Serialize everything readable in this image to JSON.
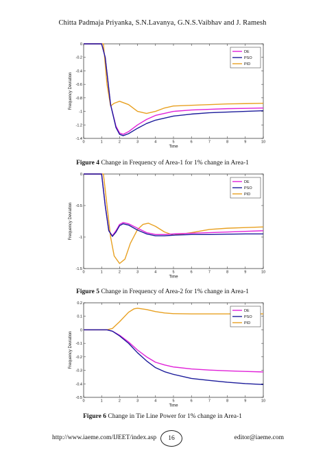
{
  "header": {
    "authors": "Chitta Padmaja Priyanka, S.N.Lavanya, G.N.S.Vaibhav and J. Ramesh"
  },
  "figures": [
    {
      "label": "Figure 4",
      "caption": " Change in Frequency of Area-1 for 1% change in Area-1"
    },
    {
      "label": "Figure 5",
      "caption": " Change in Frequency of Area-2 for 1% change in Area-1"
    },
    {
      "label": "Figure 6",
      "caption": " Change in Tie Line Power for 1% change in Area-1"
    }
  ],
  "footer": {
    "url": "http://www.iaeme.com/IJEET/index.asp",
    "page": "16",
    "email": "editor@iaeme.com"
  },
  "colors": {
    "DE": "#e020d8",
    "PSO": "#1a1a9a",
    "PID": "#e8a020"
  },
  "chart_data": [
    {
      "type": "line",
      "xlabel": "Time",
      "ylabel": "Frequency Deviation",
      "xlim": [
        0,
        10
      ],
      "ylim": [
        -1.4,
        0
      ],
      "xticks": [
        0,
        1,
        2,
        3,
        4,
        5,
        6,
        7,
        8,
        9,
        10
      ],
      "yticks": [
        0,
        -0.2,
        -0.4,
        -0.6,
        -0.8,
        -1,
        -1.2,
        -1.4
      ],
      "ytick_labels": [
        "0",
        "-0.2",
        "-0.4",
        "-0.6",
        "-0.8",
        "-1",
        "-1.2",
        "-1.4"
      ],
      "legend_position": "top-right",
      "series": [
        {
          "name": "DE",
          "x": [
            0,
            1,
            1.2,
            1.5,
            1.8,
            2.0,
            2.2,
            2.5,
            3.0,
            3.5,
            4,
            5,
            6,
            7,
            8,
            9,
            10
          ],
          "y": [
            0,
            0,
            -0.2,
            -0.9,
            -1.22,
            -1.32,
            -1.34,
            -1.3,
            -1.2,
            -1.12,
            -1.06,
            -1.0,
            -0.98,
            -0.97,
            -0.96,
            -0.955,
            -0.95
          ]
        },
        {
          "name": "PSO",
          "x": [
            0,
            1,
            1.2,
            1.5,
            1.8,
            2.0,
            2.2,
            2.5,
            3.0,
            3.5,
            4,
            5,
            6,
            7,
            8,
            9,
            10
          ],
          "y": [
            0,
            0,
            -0.2,
            -0.9,
            -1.24,
            -1.34,
            -1.36,
            -1.33,
            -1.25,
            -1.18,
            -1.13,
            -1.07,
            -1.04,
            -1.02,
            -1.01,
            -1.0,
            -0.99
          ]
        },
        {
          "name": "PID",
          "x": [
            0,
            1,
            1.1,
            1.3,
            1.5,
            1.7,
            2.0,
            2.5,
            3.0,
            3.5,
            4,
            4.5,
            5,
            6,
            7,
            8,
            9,
            10
          ],
          "y": [
            0,
            0,
            0,
            -0.6,
            -0.92,
            -0.88,
            -0.85,
            -0.9,
            -1.0,
            -1.03,
            -1.0,
            -0.95,
            -0.92,
            -0.91,
            -0.9,
            -0.89,
            -0.885,
            -0.88
          ]
        }
      ]
    },
    {
      "type": "line",
      "xlabel": "Time",
      "ylabel": "Frequency Deviation",
      "xlim": [
        0,
        10
      ],
      "ylim": [
        -1.5,
        0
      ],
      "xticks": [
        0,
        1,
        2,
        3,
        4,
        5,
        6,
        7,
        8,
        9,
        10
      ],
      "yticks": [
        0,
        -0.5,
        -1,
        -1.5
      ],
      "ytick_labels": [
        "0",
        "-0.5",
        "-1",
        "-1.5"
      ],
      "legend_position": "top-right",
      "series": [
        {
          "name": "DE",
          "x": [
            0,
            1,
            1.2,
            1.4,
            1.6,
            1.8,
            2.0,
            2.2,
            2.5,
            3.0,
            3.5,
            4,
            4.5,
            5,
            6,
            7,
            8,
            9,
            10
          ],
          "y": [
            0,
            0,
            -0.5,
            -0.9,
            -0.98,
            -0.9,
            -0.8,
            -0.77,
            -0.79,
            -0.86,
            -0.93,
            -0.96,
            -0.96,
            -0.95,
            -0.94,
            -0.93,
            -0.92,
            -0.91,
            -0.9
          ]
        },
        {
          "name": "PSO",
          "x": [
            0,
            1,
            1.2,
            1.4,
            1.6,
            1.8,
            2.0,
            2.2,
            2.5,
            3.0,
            3.5,
            4,
            4.5,
            5,
            6,
            7,
            8,
            9,
            10
          ],
          "y": [
            0,
            0,
            -0.5,
            -0.9,
            -0.99,
            -0.92,
            -0.82,
            -0.79,
            -0.81,
            -0.89,
            -0.95,
            -0.98,
            -0.98,
            -0.97,
            -0.96,
            -0.96,
            -0.955,
            -0.95,
            -0.95
          ]
        },
        {
          "name": "PID",
          "x": [
            0,
            1,
            1.1,
            1.3,
            1.5,
            1.7,
            2.0,
            2.3,
            2.6,
            3.0,
            3.3,
            3.6,
            4,
            4.5,
            5,
            6,
            7,
            8,
            9,
            10
          ],
          "y": [
            0,
            0,
            0,
            -0.5,
            -1.0,
            -1.3,
            -1.42,
            -1.35,
            -1.1,
            -0.88,
            -0.8,
            -0.78,
            -0.83,
            -0.92,
            -0.97,
            -0.93,
            -0.88,
            -0.86,
            -0.85,
            -0.84
          ]
        }
      ]
    },
    {
      "type": "line",
      "xlabel": "Time",
      "ylabel": "Frequency Deviation",
      "xlim": [
        0,
        10
      ],
      "ylim": [
        -0.5,
        0.2
      ],
      "xticks": [
        0,
        1,
        2,
        3,
        4,
        5,
        6,
        7,
        8,
        9,
        10
      ],
      "yticks": [
        0.2,
        0.1,
        0,
        -0.1,
        -0.2,
        -0.3,
        -0.4,
        -0.5
      ],
      "ytick_labels": [
        "0.2",
        "0.1",
        "0",
        "-0.1",
        "-0.2",
        "-0.3",
        "-0.4",
        "-0.5"
      ],
      "legend_position": "top-right",
      "series": [
        {
          "name": "DE",
          "x": [
            0,
            1,
            1.3,
            1.6,
            2.0,
            2.5,
            3.0,
            3.5,
            4,
            4.5,
            5,
            6,
            7,
            8,
            9,
            10
          ],
          "y": [
            0,
            0,
            0,
            -0.01,
            -0.04,
            -0.09,
            -0.15,
            -0.2,
            -0.24,
            -0.26,
            -0.275,
            -0.29,
            -0.298,
            -0.304,
            -0.308,
            -0.312
          ]
        },
        {
          "name": "PSO",
          "x": [
            0,
            1,
            1.3,
            1.6,
            2.0,
            2.5,
            3.0,
            3.5,
            4,
            4.5,
            5,
            6,
            7,
            8,
            9,
            10
          ],
          "y": [
            0,
            0,
            0,
            -0.01,
            -0.045,
            -0.1,
            -0.17,
            -0.23,
            -0.28,
            -0.31,
            -0.33,
            -0.36,
            -0.375,
            -0.388,
            -0.398,
            -0.405
          ]
        },
        {
          "name": "PID",
          "x": [
            0,
            1,
            1.3,
            1.6,
            2.0,
            2.5,
            2.8,
            3.0,
            3.5,
            4,
            4.5,
            5,
            6,
            7,
            8,
            9,
            10
          ],
          "y": [
            0,
            0,
            0,
            0.01,
            0.06,
            0.13,
            0.155,
            0.16,
            0.15,
            0.135,
            0.125,
            0.12,
            0.118,
            0.118,
            0.118,
            0.118,
            0.118
          ]
        }
      ]
    }
  ]
}
